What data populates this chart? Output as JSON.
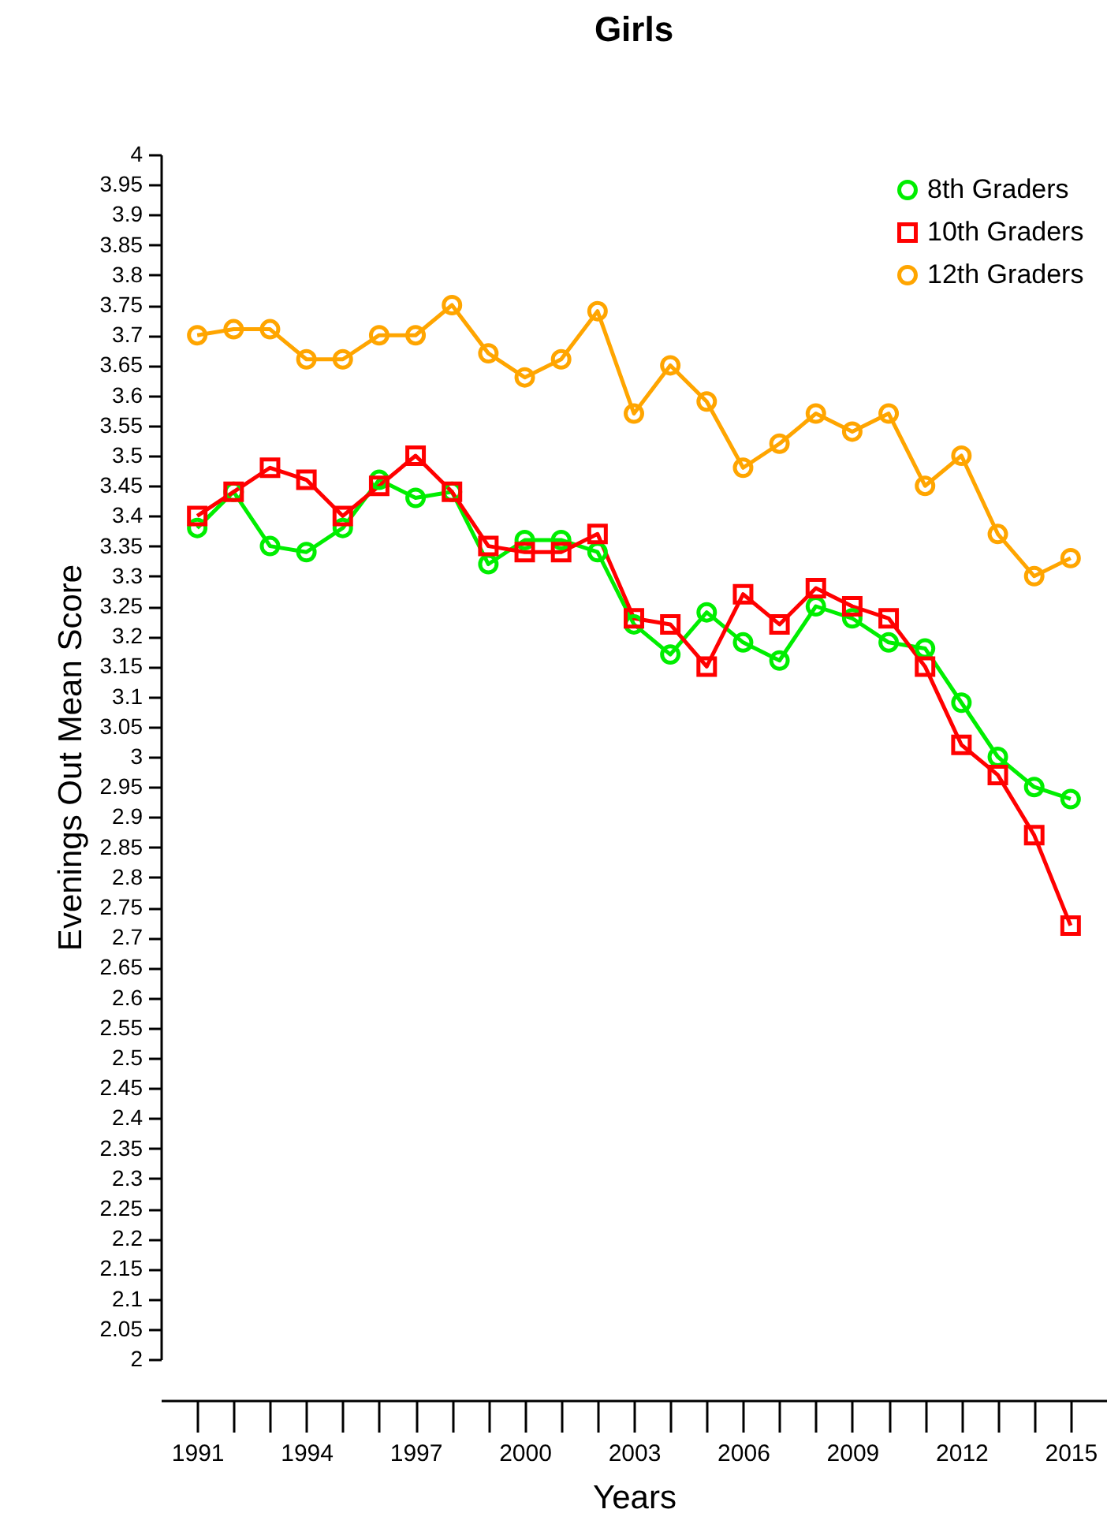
{
  "chart_data": {
    "type": "line",
    "title": "Girls",
    "xlabel": "Years",
    "ylabel": "Evenings Out Mean Score",
    "x": [
      1991,
      1992,
      1993,
      1994,
      1995,
      1996,
      1997,
      1998,
      1999,
      2000,
      2001,
      2002,
      2003,
      2004,
      2005,
      2006,
      2007,
      2008,
      2009,
      2010,
      2011,
      2012,
      2013,
      2014,
      2015
    ],
    "series": [
      {
        "name": "8th Graders",
        "color": "#00ee00",
        "marker": "circle",
        "values": [
          3.38,
          3.44,
          3.35,
          3.34,
          3.38,
          3.46,
          3.43,
          3.44,
          3.32,
          3.36,
          3.36,
          3.34,
          3.22,
          3.17,
          3.24,
          3.19,
          3.16,
          3.25,
          3.23,
          3.19,
          3.18,
          3.09,
          3.0,
          2.95,
          2.93
        ]
      },
      {
        "name": "10th Graders",
        "color": "#ff0000",
        "marker": "square",
        "values": [
          3.4,
          3.44,
          3.48,
          3.46,
          3.4,
          3.45,
          3.5,
          3.44,
          3.35,
          3.34,
          3.34,
          3.37,
          3.23,
          3.22,
          3.15,
          3.27,
          3.22,
          3.28,
          3.25,
          3.23,
          3.15,
          3.02,
          2.97,
          2.87,
          2.72
        ]
      },
      {
        "name": "12th Graders",
        "color": "#ffa500",
        "marker": "circle",
        "values": [
          3.7,
          3.71,
          3.71,
          3.66,
          3.66,
          3.7,
          3.7,
          3.75,
          3.67,
          3.63,
          3.66,
          3.74,
          3.57,
          3.65,
          3.59,
          3.48,
          3.52,
          3.57,
          3.54,
          3.57,
          3.45,
          3.5,
          3.37,
          3.3,
          3.33
        ]
      }
    ],
    "xlim": [
      1990,
      2016
    ],
    "xticks": [
      1991,
      1994,
      1997,
      2000,
      2003,
      2006,
      2009,
      2012,
      2015
    ],
    "ylim": [
      2,
      4
    ],
    "yticks": [
      2,
      2.05,
      2.1,
      2.15,
      2.2,
      2.25,
      2.3,
      2.35,
      2.4,
      2.45,
      2.5,
      2.55,
      2.6,
      2.65,
      2.7,
      2.75,
      2.8,
      2.85,
      2.9,
      2.95,
      3,
      3.05,
      3.1,
      3.15,
      3.2,
      3.25,
      3.3,
      3.35,
      3.4,
      3.45,
      3.5,
      3.55,
      3.6,
      3.65,
      3.7,
      3.75,
      3.8,
      3.85,
      3.9,
      3.95,
      4
    ],
    "grid": false,
    "legend": "top right",
    "line_style": "solid"
  }
}
